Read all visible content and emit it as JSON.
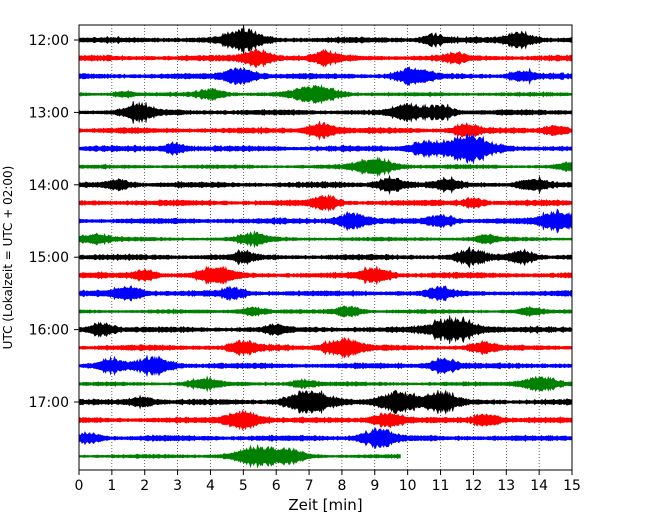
{
  "chart_data": {
    "type": "line",
    "title": "",
    "xlabel": "Zeit  [min]",
    "ylabel": "UTC (Lokalzeit = UTC + 02:00)",
    "xlim": [
      0,
      15
    ],
    "x_ticks": [
      "0",
      "1",
      "2",
      "3",
      "4",
      "5",
      "6",
      "7",
      "8",
      "9",
      "10",
      "11",
      "12",
      "13",
      "14",
      "15"
    ],
    "y_tick_labels": [
      "12:00",
      "13:00",
      "14:00",
      "15:00",
      "16:00",
      "17:00"
    ],
    "row_start_times": [
      "12:00",
      "12:15",
      "12:30",
      "12:45",
      "13:00",
      "13:15",
      "13:30",
      "13:45",
      "14:00",
      "14:15",
      "14:30",
      "14:45",
      "15:00",
      "15:15",
      "15:30",
      "15:45",
      "16:00",
      "16:15",
      "16:30",
      "16:45",
      "17:00",
      "17:15",
      "17:30",
      "17:45"
    ],
    "trace_color_cycle": [
      "#000000",
      "#ff0000",
      "#0000ff",
      "#008000"
    ],
    "last_trace_end_min": 9.8,
    "grid": "vertical dotted at each minute",
    "events": [
      {
        "row": 0,
        "t": 5.0,
        "amp": 1.2
      },
      {
        "row": 0,
        "t": 13.4,
        "amp": 0.9
      },
      {
        "row": 0,
        "t": 10.8,
        "amp": 0.6
      },
      {
        "row": 1,
        "t": 5.4,
        "amp": 1.0
      },
      {
        "row": 1,
        "t": 7.5,
        "amp": 0.7
      },
      {
        "row": 1,
        "t": 11.5,
        "amp": 0.5
      },
      {
        "row": 2,
        "t": 4.9,
        "amp": 1.0
      },
      {
        "row": 2,
        "t": 10.2,
        "amp": 1.0
      },
      {
        "row": 2,
        "t": 13.5,
        "amp": 0.6
      },
      {
        "row": 3,
        "t": 7.2,
        "amp": 1.5
      },
      {
        "row": 3,
        "t": 4.0,
        "amp": 0.8
      },
      {
        "row": 3,
        "t": 1.4,
        "amp": 0.5
      },
      {
        "row": 4,
        "t": 1.8,
        "amp": 0.9
      },
      {
        "row": 4,
        "t": 10.0,
        "amp": 0.9
      },
      {
        "row": 4,
        "t": 11.0,
        "amp": 0.8
      },
      {
        "row": 5,
        "t": 7.4,
        "amp": 0.9
      },
      {
        "row": 5,
        "t": 11.8,
        "amp": 0.7
      },
      {
        "row": 5,
        "t": 14.5,
        "amp": 0.6
      },
      {
        "row": 6,
        "t": 11.8,
        "amp": 1.6
      },
      {
        "row": 6,
        "t": 10.5,
        "amp": 0.8
      },
      {
        "row": 6,
        "t": 2.9,
        "amp": 0.6
      },
      {
        "row": 7,
        "t": 9.0,
        "amp": 1.4
      },
      {
        "row": 7,
        "t": 14.9,
        "amp": 0.6
      },
      {
        "row": 8,
        "t": 9.5,
        "amp": 0.8
      },
      {
        "row": 8,
        "t": 1.2,
        "amp": 0.6
      },
      {
        "row": 8,
        "t": 11.2,
        "amp": 0.6
      },
      {
        "row": 8,
        "t": 13.8,
        "amp": 0.7
      },
      {
        "row": 9,
        "t": 7.5,
        "amp": 0.7
      },
      {
        "row": 9,
        "t": 12.0,
        "amp": 0.5
      },
      {
        "row": 10,
        "t": 8.3,
        "amp": 0.9
      },
      {
        "row": 10,
        "t": 14.6,
        "amp": 1.2
      },
      {
        "row": 10,
        "t": 11.0,
        "amp": 0.7
      },
      {
        "row": 11,
        "t": 0.5,
        "amp": 0.9
      },
      {
        "row": 11,
        "t": 5.3,
        "amp": 0.9
      },
      {
        "row": 11,
        "t": 12.4,
        "amp": 0.6
      },
      {
        "row": 12,
        "t": 11.9,
        "amp": 0.8
      },
      {
        "row": 12,
        "t": 13.5,
        "amp": 0.7
      },
      {
        "row": 12,
        "t": 5.0,
        "amp": 0.5
      },
      {
        "row": 13,
        "t": 4.2,
        "amp": 1.0
      },
      {
        "row": 13,
        "t": 9.0,
        "amp": 0.9
      },
      {
        "row": 13,
        "t": 2.0,
        "amp": 0.6
      },
      {
        "row": 14,
        "t": 1.5,
        "amp": 0.9
      },
      {
        "row": 14,
        "t": 11.0,
        "amp": 0.6
      },
      {
        "row": 14,
        "t": 4.7,
        "amp": 0.6
      },
      {
        "row": 15,
        "t": 5.3,
        "amp": 0.7
      },
      {
        "row": 15,
        "t": 8.2,
        "amp": 0.8
      },
      {
        "row": 15,
        "t": 13.7,
        "amp": 0.6
      },
      {
        "row": 16,
        "t": 11.4,
        "amp": 1.5
      },
      {
        "row": 16,
        "t": 0.7,
        "amp": 0.7
      },
      {
        "row": 16,
        "t": 6.0,
        "amp": 0.5
      },
      {
        "row": 17,
        "t": 8.0,
        "amp": 1.1
      },
      {
        "row": 17,
        "t": 5.0,
        "amp": 0.7
      },
      {
        "row": 17,
        "t": 12.3,
        "amp": 0.6
      },
      {
        "row": 18,
        "t": 2.3,
        "amp": 1.0
      },
      {
        "row": 18,
        "t": 1.0,
        "amp": 0.7
      },
      {
        "row": 18,
        "t": 11.1,
        "amp": 0.8
      },
      {
        "row": 19,
        "t": 3.8,
        "amp": 0.9
      },
      {
        "row": 19,
        "t": 6.8,
        "amp": 0.7
      },
      {
        "row": 19,
        "t": 14.0,
        "amp": 1.2
      },
      {
        "row": 20,
        "t": 7.0,
        "amp": 1.4
      },
      {
        "row": 20,
        "t": 9.7,
        "amp": 1.3
      },
      {
        "row": 20,
        "t": 11.0,
        "amp": 1.0
      },
      {
        "row": 20,
        "t": 1.9,
        "amp": 0.6
      },
      {
        "row": 21,
        "t": 5.0,
        "amp": 1.1
      },
      {
        "row": 21,
        "t": 9.4,
        "amp": 0.9
      },
      {
        "row": 21,
        "t": 12.4,
        "amp": 0.7
      },
      {
        "row": 22,
        "t": 9.1,
        "amp": 1.0
      },
      {
        "row": 22,
        "t": 0.3,
        "amp": 0.6
      },
      {
        "row": 23,
        "t": 5.5,
        "amp": 1.7
      },
      {
        "row": 23,
        "t": 6.5,
        "amp": 0.8
      }
    ]
  }
}
